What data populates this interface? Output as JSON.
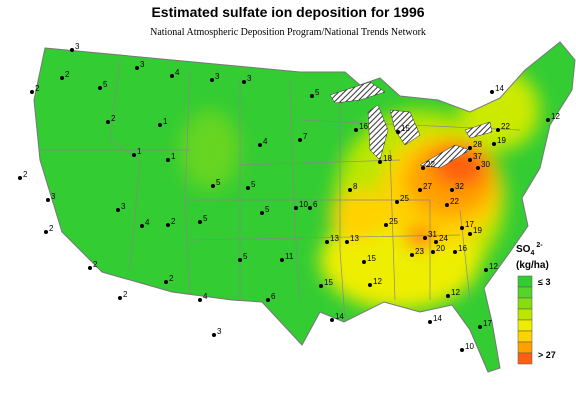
{
  "header": {
    "title": "Estimated sulfate ion deposition for 1996",
    "subtitle": "National Atmospheric Deposition Program/National Trends Network"
  },
  "legend": {
    "symbol": "SO",
    "subscript": "4",
    "superscript": "2-",
    "units": "(kg/ha)",
    "low_label": "≤ 3",
    "high_label": "> 27",
    "colors": [
      "#33cc33",
      "#55d42a",
      "#88dd11",
      "#bbe600",
      "#eeee00",
      "#ffd200",
      "#ffa000",
      "#ff6010"
    ]
  },
  "stations": [
    3,
    3,
    4,
    3,
    3,
    5,
    2,
    2,
    5,
    1,
    2,
    1,
    2,
    3,
    5,
    7,
    4,
    5,
    2,
    1,
    2,
    3,
    2,
    4,
    5,
    10,
    16,
    15,
    18,
    22,
    25,
    28,
    32,
    37,
    30,
    27,
    22,
    19,
    14,
    12,
    17,
    25,
    31,
    24,
    20,
    15,
    13,
    13,
    11,
    15,
    12,
    14,
    14,
    12,
    10,
    17,
    6,
    5,
    3,
    2,
    4,
    2,
    23,
    19,
    16,
    22,
    8,
    6,
    5,
    12
  ]
}
